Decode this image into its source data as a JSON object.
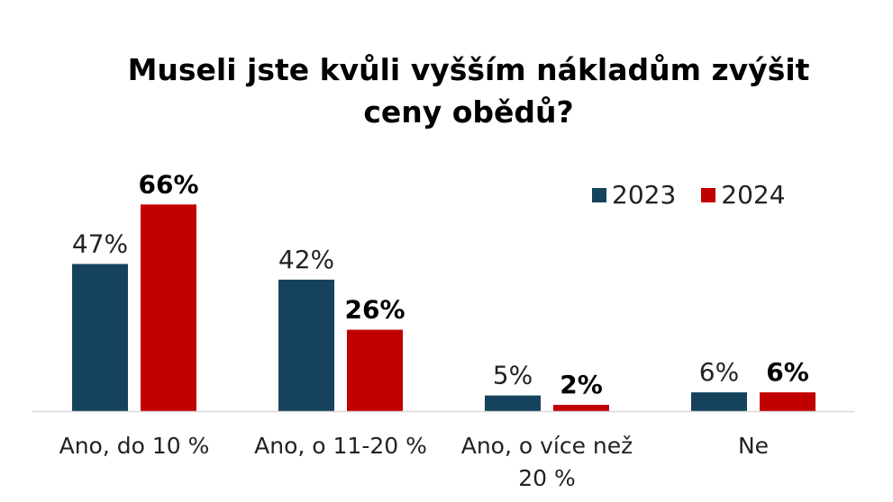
{
  "chart_data": {
    "type": "bar",
    "title": "Museli jste kvůli vyšším nákladům zvýšit ceny obědů?",
    "categories": [
      [
        "Ano, do 10 %"
      ],
      [
        "Ano, o 11-20 %"
      ],
      [
        "Ano, o více než",
        "20 %"
      ],
      [
        "Ne"
      ]
    ],
    "series": [
      {
        "name": "2023",
        "color": "#15435E",
        "values": [
          47,
          42,
          5,
          6
        ],
        "labels": [
          "47%",
          "42%",
          "5%",
          "6%"
        ],
        "label_bold": false
      },
      {
        "name": "2024",
        "color": "#C00000",
        "values": [
          66,
          26,
          2,
          6
        ],
        "labels": [
          "66%",
          "26%",
          "2%",
          "6%"
        ],
        "label_bold": true
      }
    ],
    "ylim": [
      0,
      70
    ],
    "grid": false,
    "legend_position": "top-right",
    "xlabel": "",
    "ylabel": ""
  }
}
